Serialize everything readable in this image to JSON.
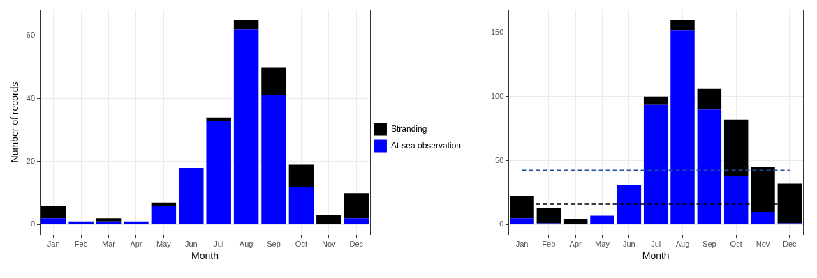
{
  "chart_data": [
    {
      "type": "bar",
      "stacked": true,
      "x_label": "Month",
      "y_label": "Number of records",
      "categories": [
        "Jan",
        "Feb",
        "Mar",
        "Apr",
        "May",
        "Jun",
        "Jul",
        "Aug",
        "Sep",
        "Oct",
        "Nov",
        "Dec"
      ],
      "series": [
        {
          "name": "At-sea observation",
          "color": "#0000ff",
          "values": [
            2,
            1,
            1,
            1,
            6,
            18,
            33,
            62,
            41,
            12,
            0,
            2
          ]
        },
        {
          "name": "Stranding",
          "color": "#000000",
          "values": [
            4,
            0,
            1,
            0,
            1,
            0,
            1,
            3,
            9,
            7,
            3,
            8
          ]
        }
      ],
      "ylim": [
        -3.25,
        68.25
      ],
      "yticks": [
        0,
        20,
        40,
        60
      ],
      "grid": true,
      "legend": "right"
    },
    {
      "type": "bar",
      "stacked": true,
      "x_label": "Month",
      "categories": [
        "Jan",
        "Feb",
        "Apr",
        "May",
        "Jun",
        "Jul",
        "Aug",
        "Sep",
        "Oct",
        "Nov",
        "Dec"
      ],
      "series": [
        {
          "color": "#0000ff",
          "values": [
            5,
            1,
            0,
            7,
            31,
            94,
            152,
            90,
            38,
            10,
            1
          ]
        },
        {
          "color": "#000000",
          "values": [
            17,
            12,
            4,
            0,
            0,
            6,
            8,
            16,
            44,
            35,
            31
          ]
        },
        {
          "type": "line",
          "line_style": "dashed",
          "marker": "none",
          "color": "#1f4e9c",
          "values": [
            42.5,
            42.5,
            42.5,
            42.5,
            42.5,
            42.5,
            42.5,
            42.5,
            42.5,
            42.5,
            42.5
          ]
        },
        {
          "type": "line",
          "line_style": "dashed",
          "marker": "none",
          "color": "#000000",
          "values": [
            16,
            16,
            16,
            16,
            16,
            16,
            16,
            16,
            16,
            16,
            16
          ]
        }
      ],
      "ylim": [
        -8,
        168
      ],
      "yticks": [
        0,
        50,
        100,
        150
      ],
      "grid": true
    }
  ]
}
